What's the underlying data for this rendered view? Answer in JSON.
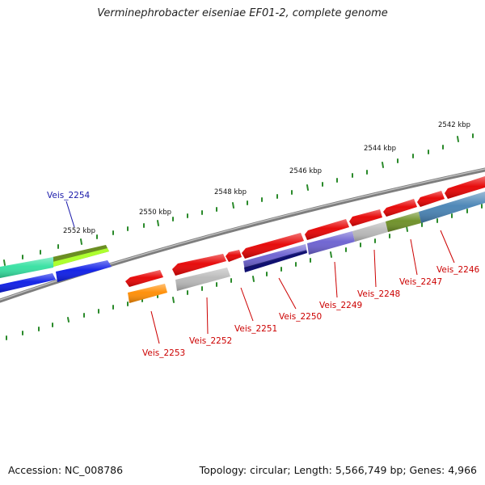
{
  "title": "Verminephrobacter eiseniae EF01-2, complete genome",
  "footer": {
    "accession": "Accession: NC_008786",
    "topology": "Topology: circular; Length: 5,566,749 bp; Genes: 4,966"
  },
  "scale_labels": [
    "2542 kbp",
    "2544 kbp",
    "2546 kbp",
    "2548 kbp",
    "2550 kbp",
    "2552 kbp"
  ],
  "gene_labels": [
    "Veis_2254",
    "Veis_2253",
    "Veis_2252",
    "Veis_2251",
    "Veis_2250",
    "Veis_2249",
    "Veis_2248",
    "Veis_2247",
    "Veis_2246"
  ],
  "colors": {
    "backbone": "#8a8a8a",
    "ticks": "#2a7a2a",
    "label_red": "#cc0000",
    "label_blue": "#1a1aaa",
    "red": "#e60000",
    "gray": "#b8b8b8",
    "orange": "#ff8c00",
    "navy": "#101070",
    "purple": "#6a5fd0",
    "olive": "#6b8e23",
    "steelblue": "#4682b4",
    "green_aqua": "#33e0a0",
    "lime": "#adff2f",
    "blue": "#0a1ae6"
  }
}
